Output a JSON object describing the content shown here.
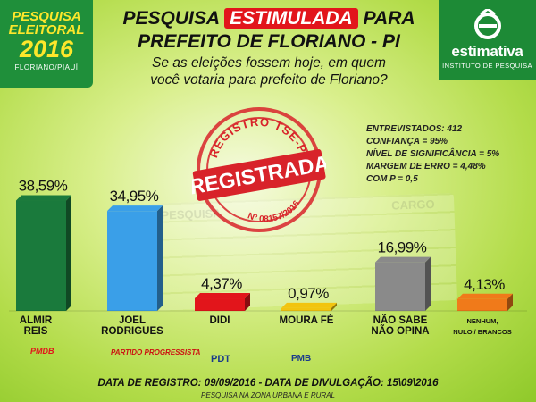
{
  "logo_left": {
    "line1": "PESQUISA",
    "line2": "ELEITORAL",
    "year": "2016",
    "place": "FLORIANO/PIAUÍ"
  },
  "logo_right": {
    "brand": "estimativa",
    "subtitle": "INSTITUTO DE PESQUISA"
  },
  "heading": {
    "part1": "PESQUISA",
    "highlight": "ESTIMULADA",
    "part2": "PARA",
    "line2": "PREFEITO DE FLORIANO - PI",
    "question_line1": "Se as eleições fossem hoje, em quem",
    "question_line2": "você votaria para prefeito de Floriano?"
  },
  "stamp": {
    "top_text": "REGISTRO TSE-PI",
    "main_text": "REGISTRADA",
    "number": "Nº 08157/2016"
  },
  "stats": {
    "entrevistados": "ENTREVISTADOS: 412",
    "confianca": "CONFIANÇA = 95%",
    "significancia": "NÍVEL DE SIGNIFICÂNCIA = 5%",
    "margem": "MARGEM DE ERRO = 4,48%",
    "p": "COM P = 0,5"
  },
  "chart_data": {
    "type": "bar",
    "categories": [
      "ALMIR REIS",
      "JOEL RODRIGUES",
      "DIDI",
      "MOURA FÉ",
      "NÃO SABE NÃO OPINA",
      "NENHUM, NULO / BRANCOS"
    ],
    "values": [
      38.59,
      34.95,
      4.37,
      0.97,
      16.99,
      4.13
    ],
    "value_labels": [
      "38,59%",
      "34,95%",
      "4,37%",
      "0,97%",
      "16,99%",
      "4,13%"
    ],
    "category_lines": [
      [
        "ALMIR",
        "REIS"
      ],
      [
        "JOEL",
        "RODRIGUES"
      ],
      [
        "DIDI"
      ],
      [
        "MOURA FÉ"
      ],
      [
        "NÃO SABE",
        "NÃO OPINA"
      ],
      [
        "NENHUM,",
        "NULO / BRANCOS"
      ]
    ],
    "colors": [
      "#1a7a3c",
      "#3a9fe8",
      "#e2151b",
      "#f2c40f",
      "#8a8a8a",
      "#f07a1a"
    ]
  },
  "parties": {
    "pmdb": "PMDB",
    "pp": "PARTIDO PROGRESSISTA",
    "pdt": "PDT",
    "pmb": "PMB"
  },
  "footer": {
    "dates": "DATA DE REGISTRO: 09/09/2016 - DATA DE DIVULGAÇÃO: 15\\09\\2016",
    "note": "PESQUISA NA ZONA URBANA E RURAL"
  }
}
